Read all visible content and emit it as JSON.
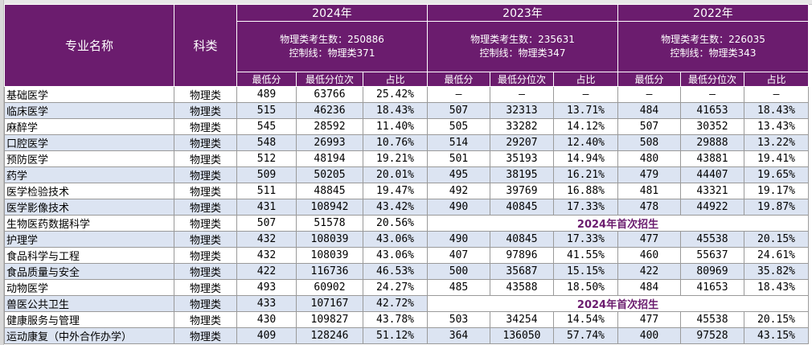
{
  "header": {
    "major_label": "专业名称",
    "category_label": "科类",
    "years": [
      {
        "year": "2024年",
        "examinees": "物理类考生数：250886",
        "control_line": "控制线：物理类371"
      },
      {
        "year": "2023年",
        "examinees": "物理类考生数：235631",
        "control_line": "控制线：物理类347"
      },
      {
        "year": "2022年",
        "examinees": "物理类考生数：226035",
        "control_line": "控制线：物理类343"
      }
    ],
    "sub_columns": [
      "最低分",
      "最低分位次",
      "占比"
    ]
  },
  "note_first_enroll": "2024年首次招生",
  "rows": [
    {
      "name": "基础医学",
      "cat": "物理类",
      "y2024": [
        "489",
        "63766",
        "25.42%"
      ],
      "y2023": [
        "—",
        "—",
        "—"
      ],
      "y2022": [
        "—",
        "—",
        "—"
      ]
    },
    {
      "name": "临床医学",
      "cat": "物理类",
      "y2024": [
        "515",
        "46236",
        "18.43%"
      ],
      "y2023": [
        "507",
        "32313",
        "13.71%"
      ],
      "y2022": [
        "484",
        "41653",
        "18.43%"
      ]
    },
    {
      "name": "麻醉学",
      "cat": "物理类",
      "y2024": [
        "545",
        "28592",
        "11.40%"
      ],
      "y2023": [
        "505",
        "33282",
        "14.12%"
      ],
      "y2022": [
        "507",
        "30352",
        "13.43%"
      ]
    },
    {
      "name": "口腔医学",
      "cat": "物理类",
      "y2024": [
        "548",
        "26993",
        "10.76%"
      ],
      "y2023": [
        "514",
        "29207",
        "12.40%"
      ],
      "y2022": [
        "508",
        "29888",
        "13.22%"
      ]
    },
    {
      "name": "预防医学",
      "cat": "物理类",
      "y2024": [
        "512",
        "48194",
        "19.21%"
      ],
      "y2023": [
        "501",
        "35193",
        "14.94%"
      ],
      "y2022": [
        "480",
        "43881",
        "19.41%"
      ]
    },
    {
      "name": "药学",
      "cat": "物理类",
      "y2024": [
        "509",
        "50205",
        "20.01%"
      ],
      "y2023": [
        "495",
        "38195",
        "16.21%"
      ],
      "y2022": [
        "479",
        "44407",
        "19.65%"
      ]
    },
    {
      "name": "医学检验技术",
      "cat": "物理类",
      "y2024": [
        "511",
        "48845",
        "19.47%"
      ],
      "y2023": [
        "492",
        "39769",
        "16.88%"
      ],
      "y2022": [
        "481",
        "43321",
        "19.17%"
      ]
    },
    {
      "name": "医学影像技术",
      "cat": "物理类",
      "y2024": [
        "431",
        "108942",
        "43.42%"
      ],
      "y2023": [
        "490",
        "40845",
        "17.33%"
      ],
      "y2022": [
        "478",
        "44922",
        "19.87%"
      ]
    },
    {
      "name": "生物医药数据科学",
      "cat": "物理类",
      "y2024": [
        "507",
        "51578",
        "20.56%"
      ],
      "first": true
    },
    {
      "name": "护理学",
      "cat": "物理类",
      "y2024": [
        "432",
        "108039",
        "43.06%"
      ],
      "y2023": [
        "490",
        "40845",
        "17.33%"
      ],
      "y2022": [
        "477",
        "45538",
        "20.15%"
      ]
    },
    {
      "name": "食品科学与工程",
      "cat": "物理类",
      "y2024": [
        "432",
        "108039",
        "43.06%"
      ],
      "y2023": [
        "407",
        "97896",
        "41.55%"
      ],
      "y2022": [
        "460",
        "55637",
        "24.61%"
      ]
    },
    {
      "name": "食品质量与安全",
      "cat": "物理类",
      "y2024": [
        "422",
        "116736",
        "46.53%"
      ],
      "y2023": [
        "500",
        "35687",
        "15.15%"
      ],
      "y2022": [
        "422",
        "80969",
        "35.82%"
      ]
    },
    {
      "name": "动物医学",
      "cat": "物理类",
      "y2024": [
        "493",
        "60902",
        "24.27%"
      ],
      "y2023": [
        "485",
        "43588",
        "18.50%"
      ],
      "y2022": [
        "484",
        "41653",
        "18.43%"
      ]
    },
    {
      "name": "兽医公共卫生",
      "cat": "物理类",
      "y2024": [
        "433",
        "107167",
        "42.72%"
      ],
      "first": true
    },
    {
      "name": "健康服务与管理",
      "cat": "物理类",
      "y2024": [
        "430",
        "109827",
        "43.78%"
      ],
      "y2023": [
        "503",
        "34254",
        "14.54%"
      ],
      "y2022": [
        "477",
        "45538",
        "20.15%"
      ]
    },
    {
      "name": "运动康复（中外合作办学）",
      "cat": "物理类",
      "y2024": [
        "409",
        "128246",
        "51.12%"
      ],
      "y2023": [
        "364",
        "136050",
        "57.74%"
      ],
      "y2022": [
        "400",
        "97528",
        "43.15%"
      ]
    }
  ]
}
